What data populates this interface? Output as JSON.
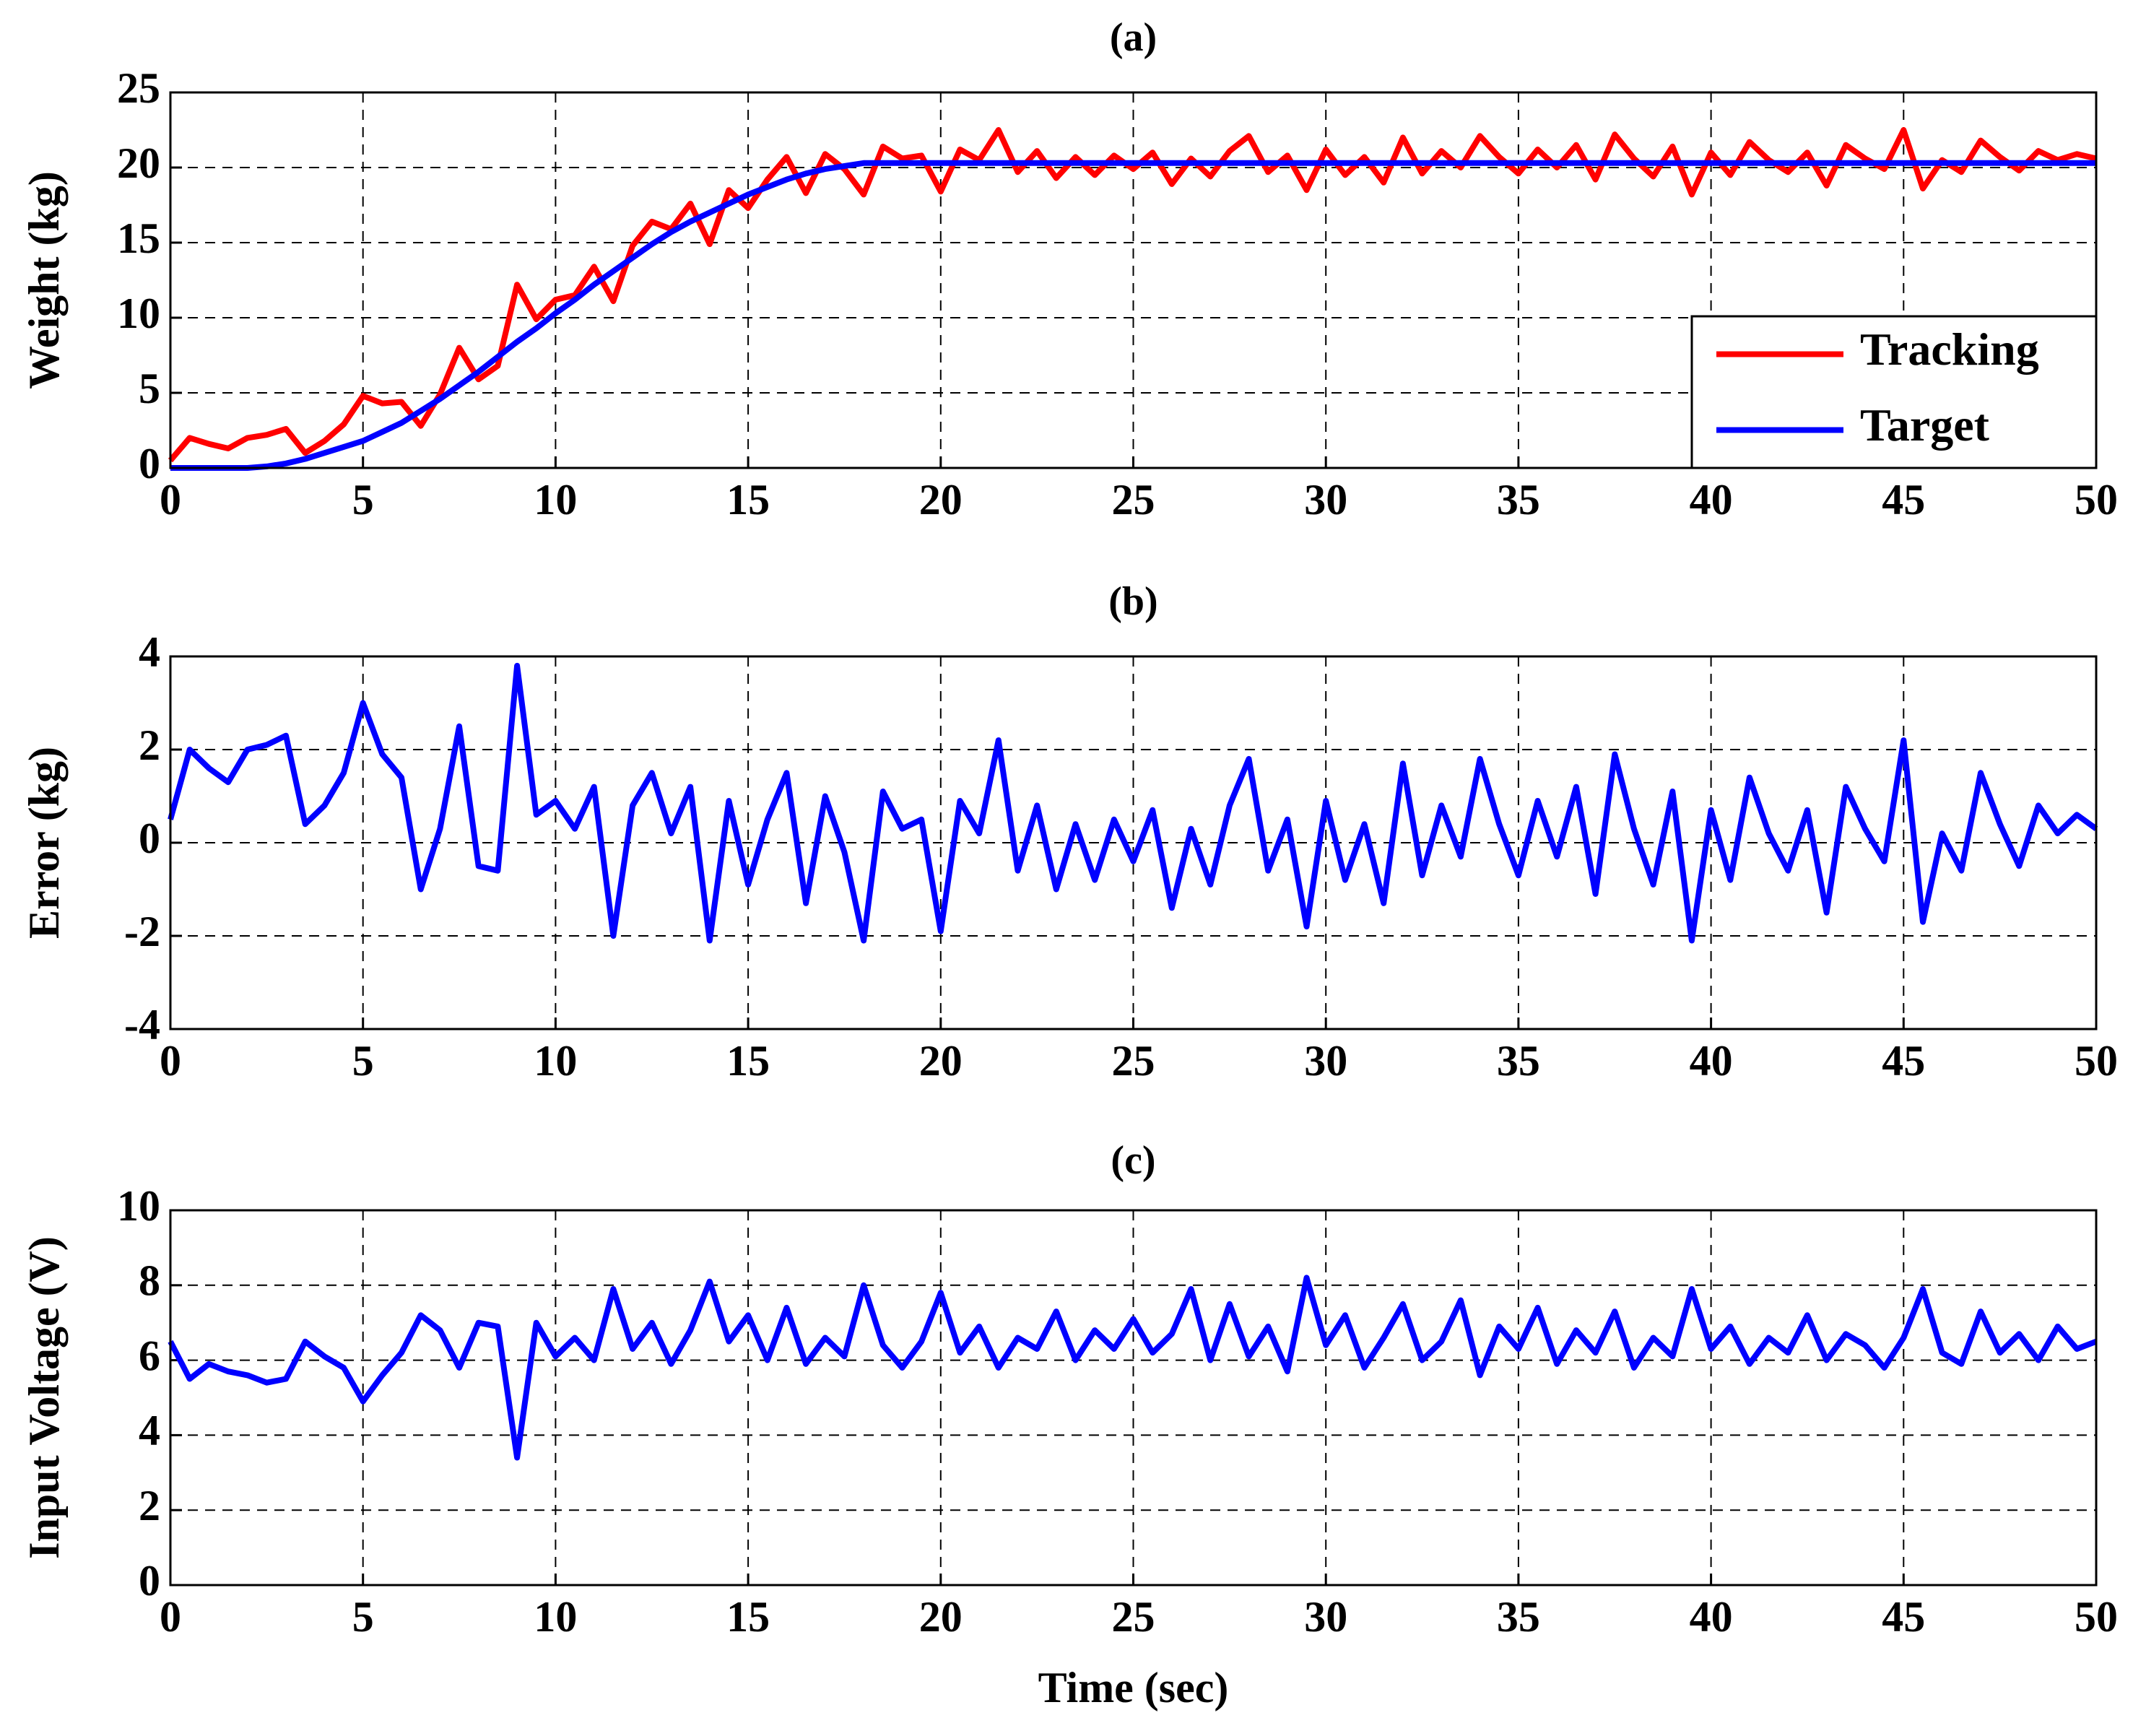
{
  "chart_data": [
    {
      "type": "line",
      "title": "(a)",
      "ylabel": "Weight (kg)",
      "x": [
        0,
        0.5,
        1,
        1.5,
        2,
        2.5,
        3,
        3.5,
        4,
        4.5,
        5,
        5.5,
        6,
        6.5,
        7,
        7.5,
        8,
        8.5,
        9,
        9.5,
        10,
        10.5,
        11,
        11.5,
        12,
        12.5,
        13,
        13.5,
        14,
        14.5,
        15,
        15.5,
        16,
        16.5,
        17,
        17.5,
        18,
        18.5,
        19,
        19.5,
        20,
        20.5,
        21,
        21.5,
        22,
        22.5,
        23,
        23.5,
        24,
        24.5,
        25,
        25.5,
        26,
        26.5,
        27,
        27.5,
        28,
        28.5,
        29,
        29.5,
        30,
        30.5,
        31,
        31.5,
        32,
        32.5,
        33,
        33.5,
        34,
        34.5,
        35,
        35.5,
        36,
        36.5,
        37,
        37.5,
        38,
        38.5,
        39,
        39.5,
        40,
        40.5,
        41,
        41.5,
        42,
        42.5,
        43,
        43.5,
        44,
        44.5,
        45,
        45.5,
        46,
        46.5,
        47,
        47.5,
        48,
        48.5,
        49,
        49.5,
        50
      ],
      "series": [
        {
          "name": "Tracking",
          "color": "#ff0000",
          "values": [
            0.5,
            2.0,
            1.6,
            1.3,
            2.0,
            2.2,
            2.6,
            1.0,
            1.8,
            2.9,
            4.8,
            4.3,
            4.4,
            2.8,
            4.9,
            8.0,
            5.9,
            6.8,
            12.2,
            9.9,
            11.2,
            11.5,
            13.4,
            11.1,
            14.8,
            16.4,
            15.9,
            17.6,
            14.9,
            18.5,
            17.3,
            19.2,
            20.7,
            18.3,
            20.9,
            19.9,
            18.2,
            21.4,
            20.6,
            20.8,
            18.4,
            21.2,
            20.5,
            22.5,
            19.7,
            21.1,
            19.3,
            20.7,
            19.5,
            20.8,
            19.9,
            21.0,
            18.9,
            20.6,
            19.4,
            21.1,
            22.1,
            19.7,
            20.8,
            18.5,
            21.2,
            19.5,
            20.7,
            19.0,
            22.0,
            19.6,
            21.1,
            20.0,
            22.1,
            20.7,
            19.6,
            21.2,
            20.0,
            21.5,
            19.2,
            22.2,
            20.6,
            19.4,
            21.4,
            18.2,
            21.0,
            19.5,
            21.7,
            20.5,
            19.7,
            21.0,
            18.8,
            21.5,
            20.6,
            19.9,
            22.5,
            18.6,
            20.5,
            19.7,
            21.8,
            20.7,
            19.8,
            21.1,
            20.5,
            20.9,
            20.6
          ]
        },
        {
          "name": "Target",
          "color": "#0000ff",
          "values": [
            0,
            0,
            0,
            0,
            0,
            0.1,
            0.3,
            0.6,
            1,
            1.4,
            1.8,
            2.4,
            3,
            3.8,
            4.6,
            5.5,
            6.4,
            7.4,
            8.4,
            9.3,
            10.3,
            11.2,
            12.2,
            13.1,
            14,
            14.9,
            15.7,
            16.4,
            17,
            17.6,
            18.2,
            18.7,
            19.2,
            19.6,
            19.9,
            20.1,
            20.3,
            20.3,
            20.3,
            20.3,
            20.3,
            20.3,
            20.3,
            20.3,
            20.3,
            20.3,
            20.3,
            20.3,
            20.3,
            20.3,
            20.3,
            20.3,
            20.3,
            20.3,
            20.3,
            20.3,
            20.3,
            20.3,
            20.3,
            20.3,
            20.3,
            20.3,
            20.3,
            20.3,
            20.3,
            20.3,
            20.3,
            20.3,
            20.3,
            20.3,
            20.3,
            20.3,
            20.3,
            20.3,
            20.3,
            20.3,
            20.3,
            20.3,
            20.3,
            20.3,
            20.3,
            20.3,
            20.3,
            20.3,
            20.3,
            20.3,
            20.3,
            20.3,
            20.3,
            20.3,
            20.3,
            20.3,
            20.3,
            20.3,
            20.3,
            20.3,
            20.3,
            20.3,
            20.3,
            20.3,
            20.3
          ]
        }
      ],
      "xlim": [
        0,
        50
      ],
      "xticks": [
        0,
        5,
        10,
        15,
        20,
        25,
        30,
        35,
        40,
        45,
        50
      ],
      "ylim": [
        0,
        25
      ],
      "yticks": [
        0,
        5,
        10,
        15,
        20,
        25
      ],
      "grid": true,
      "legend": "lower right"
    },
    {
      "type": "line",
      "title": "(b)",
      "ylabel": "Error (kg)",
      "x": [
        0,
        0.5,
        1,
        1.5,
        2,
        2.5,
        3,
        3.5,
        4,
        4.5,
        5,
        5.5,
        6,
        6.5,
        7,
        7.5,
        8,
        8.5,
        9,
        9.5,
        10,
        10.5,
        11,
        11.5,
        12,
        12.5,
        13,
        13.5,
        14,
        14.5,
        15,
        15.5,
        16,
        16.5,
        17,
        17.5,
        18,
        18.5,
        19,
        19.5,
        20,
        20.5,
        21,
        21.5,
        22,
        22.5,
        23,
        23.5,
        24,
        24.5,
        25,
        25.5,
        26,
        26.5,
        27,
        27.5,
        28,
        28.5,
        29,
        29.5,
        30,
        30.5,
        31,
        31.5,
        32,
        32.5,
        33,
        33.5,
        34,
        34.5,
        35,
        35.5,
        36,
        36.5,
        37,
        37.5,
        38,
        38.5,
        39,
        39.5,
        40,
        40.5,
        41,
        41.5,
        42,
        42.5,
        43,
        43.5,
        44,
        44.5,
        45,
        45.5,
        46,
        46.5,
        47,
        47.5,
        48,
        48.5,
        49,
        49.5,
        50
      ],
      "series": [
        {
          "color": "#0000ff",
          "values": [
            0.5,
            2.0,
            1.6,
            1.3,
            2.0,
            2.1,
            2.3,
            0.4,
            0.8,
            1.5,
            3.0,
            1.9,
            1.4,
            -1.0,
            0.3,
            2.5,
            -0.5,
            -0.6,
            3.8,
            0.6,
            0.9,
            0.3,
            1.2,
            -2.0,
            0.8,
            1.5,
            0.2,
            1.2,
            -2.1,
            0.9,
            -0.9,
            0.5,
            1.5,
            -1.3,
            1.0,
            -0.2,
            -2.1,
            1.1,
            0.3,
            0.5,
            -1.9,
            0.9,
            0.2,
            2.2,
            -0.6,
            0.8,
            -1.0,
            0.4,
            -0.8,
            0.5,
            -0.4,
            0.7,
            -1.4,
            0.3,
            -0.9,
            0.8,
            1.8,
            -0.6,
            0.5,
            -1.8,
            0.9,
            -0.8,
            0.4,
            -1.3,
            1.7,
            -0.7,
            0.8,
            -0.3,
            1.8,
            0.4,
            -0.7,
            0.9,
            -0.3,
            1.2,
            -1.1,
            1.9,
            0.3,
            -0.9,
            1.1,
            -2.1,
            0.7,
            -0.8,
            1.4,
            0.2,
            -0.6,
            0.7,
            -1.5,
            1.2,
            0.3,
            -0.4,
            2.2,
            -1.7,
            0.2,
            -0.6,
            1.5,
            0.4,
            -0.5,
            0.8,
            0.2,
            0.6,
            0.3
          ]
        }
      ],
      "xlim": [
        0,
        50
      ],
      "xticks": [
        0,
        5,
        10,
        15,
        20,
        25,
        30,
        35,
        40,
        45,
        50
      ],
      "ylim": [
        -4,
        4
      ],
      "yticks": [
        -4,
        -2,
        0,
        2,
        4
      ],
      "grid": true
    },
    {
      "type": "line",
      "title": "(c)",
      "ylabel": "Input Voltage (V)",
      "xlabel": "Time (sec)",
      "x": [
        0,
        0.5,
        1,
        1.5,
        2,
        2.5,
        3,
        3.5,
        4,
        4.5,
        5,
        5.5,
        6,
        6.5,
        7,
        7.5,
        8,
        8.5,
        9,
        9.5,
        10,
        10.5,
        11,
        11.5,
        12,
        12.5,
        13,
        13.5,
        14,
        14.5,
        15,
        15.5,
        16,
        16.5,
        17,
        17.5,
        18,
        18.5,
        19,
        19.5,
        20,
        20.5,
        21,
        21.5,
        22,
        22.5,
        23,
        23.5,
        24,
        24.5,
        25,
        25.5,
        26,
        26.5,
        27,
        27.5,
        28,
        28.5,
        29,
        29.5,
        30,
        30.5,
        31,
        31.5,
        32,
        32.5,
        33,
        33.5,
        34,
        34.5,
        35,
        35.5,
        36,
        36.5,
        37,
        37.5,
        38,
        38.5,
        39,
        39.5,
        40,
        40.5,
        41,
        41.5,
        42,
        42.5,
        43,
        43.5,
        44,
        44.5,
        45,
        45.5,
        46,
        46.5,
        47,
        47.5,
        48,
        48.5,
        49,
        49.5,
        50
      ],
      "series": [
        {
          "color": "#0000ff",
          "values": [
            6.5,
            5.5,
            5.9,
            5.7,
            5.6,
            5.4,
            5.5,
            6.5,
            6.1,
            5.8,
            4.9,
            5.6,
            6.2,
            7.2,
            6.8,
            5.8,
            7.0,
            6.9,
            3.4,
            7.0,
            6.1,
            6.6,
            6.0,
            7.9,
            6.3,
            7.0,
            5.9,
            6.8,
            8.1,
            6.5,
            7.2,
            6.0,
            7.4,
            5.9,
            6.6,
            6.1,
            8.0,
            6.4,
            5.8,
            6.5,
            7.8,
            6.2,
            6.9,
            5.8,
            6.6,
            6.3,
            7.3,
            6.0,
            6.8,
            6.3,
            7.1,
            6.2,
            6.7,
            7.9,
            6.0,
            7.5,
            6.1,
            6.9,
            5.7,
            8.2,
            6.4,
            7.2,
            5.8,
            6.6,
            7.5,
            6.0,
            6.5,
            7.6,
            5.6,
            6.9,
            6.3,
            7.4,
            5.9,
            6.8,
            6.2,
            7.3,
            5.8,
            6.6,
            6.1,
            7.9,
            6.3,
            6.9,
            5.9,
            6.6,
            6.2,
            7.2,
            6.0,
            6.7,
            6.4,
            5.8,
            6.6,
            7.9,
            6.2,
            5.9,
            7.3,
            6.2,
            6.7,
            6.0,
            6.9,
            6.3,
            6.5
          ]
        }
      ],
      "xlim": [
        0,
        50
      ],
      "xticks": [
        0,
        5,
        10,
        15,
        20,
        25,
        30,
        35,
        40,
        45,
        50
      ],
      "ylim": [
        0,
        10
      ],
      "yticks": [
        0,
        2,
        4,
        6,
        8,
        10
      ],
      "grid": true
    }
  ]
}
